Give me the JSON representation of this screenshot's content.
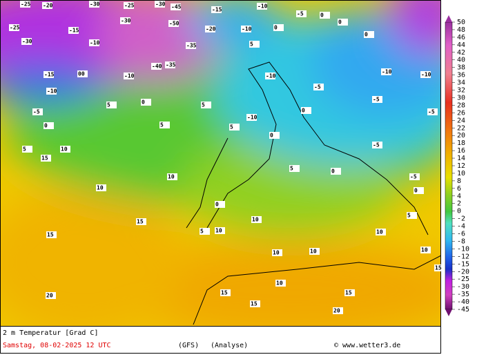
{
  "caption": "2 m Temperatur [Grad C]",
  "date": "Samstag, 08-02-2025  12 UTC",
  "model": "(GFS)",
  "run": "(Analyse)",
  "credit": "© www.wetter3.de",
  "legend": {
    "labels": [
      "50",
      "48",
      "46",
      "44",
      "42",
      "40",
      "38",
      "36",
      "34",
      "32",
      "30",
      "28",
      "26",
      "24",
      "22",
      "20",
      "18",
      "16",
      "14",
      "12",
      "10",
      "8",
      "6",
      "4",
      "2",
      "0",
      "-2",
      "-4",
      "-6",
      "-8",
      "-10",
      "-12",
      "-15",
      "-20",
      "-25",
      "-30",
      "-35",
      "-40",
      "-45"
    ]
  },
  "map_labels": [
    "-25",
    "-20",
    "-30",
    "-25",
    "-30",
    "-45",
    "-15",
    "-10",
    "-25",
    "-15",
    "-30",
    "-50",
    "-20",
    "-10",
    "-30",
    "-10",
    "-35",
    "-40",
    "-35",
    "-15",
    "00",
    "-10",
    "-10",
    "5",
    "0",
    "5",
    "-5",
    "0",
    "5",
    "5",
    "10",
    "15",
    "10",
    "10",
    "15",
    "15",
    "20",
    "20",
    "10",
    "10",
    "10",
    "15",
    "15",
    "15",
    "10",
    "15",
    "5",
    "0",
    "-5",
    "-5",
    "-5",
    "-5",
    "-5",
    "0",
    "0",
    "-10",
    "-10",
    "0",
    "-5",
    "0",
    "5",
    "-10",
    "-10",
    "5",
    "0",
    "0",
    "0",
    "10",
    "10",
    "5",
    "0",
    "5",
    "10"
  ]
}
